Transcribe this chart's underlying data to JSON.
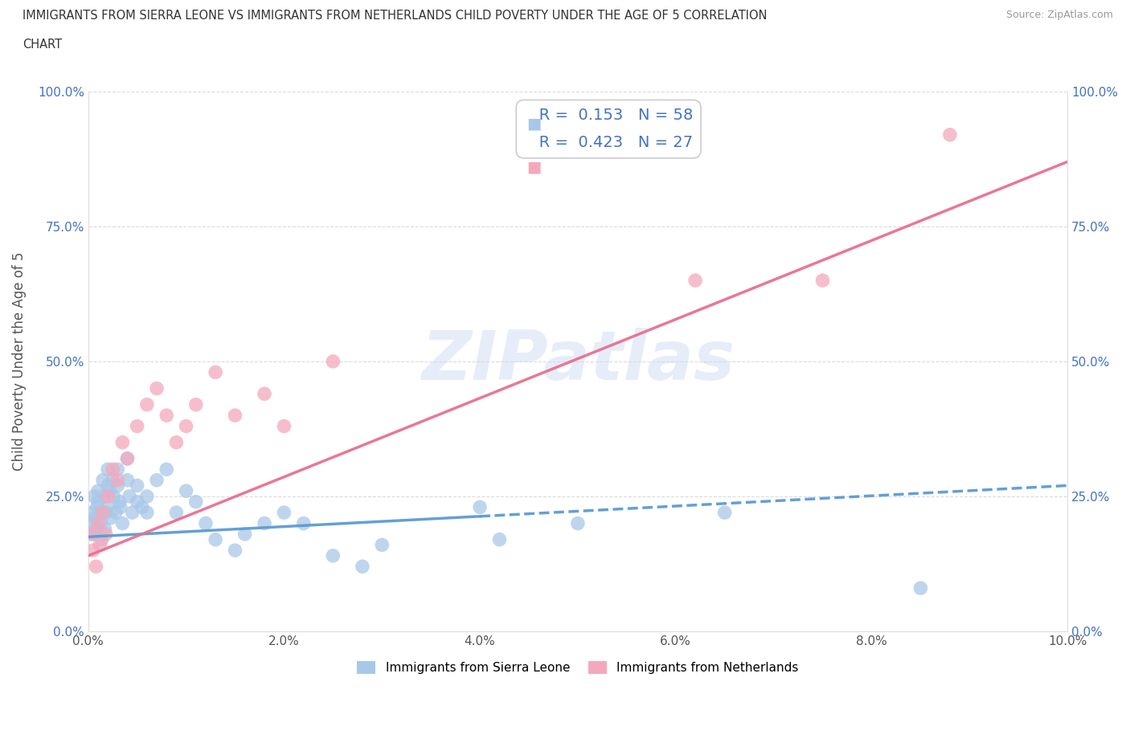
{
  "title_line1": "IMMIGRANTS FROM SIERRA LEONE VS IMMIGRANTS FROM NETHERLANDS CHILD POVERTY UNDER THE AGE OF 5 CORRELATION",
  "title_line2": "CHART",
  "source": "Source: ZipAtlas.com",
  "ylabel": "Child Poverty Under the Age of 5",
  "r_sierra": 0.153,
  "n_sierra": 58,
  "r_netherlands": 0.423,
  "n_netherlands": 27,
  "color_sierra": "#a8c8e8",
  "color_netherlands": "#f4a8bc",
  "trendline_sierra_color": "#5b9bd5",
  "trendline_netherlands_color": "#e87090",
  "background_color": "#ffffff",
  "watermark": "ZIPatlas",
  "xlim": [
    0.0,
    0.1
  ],
  "ylim": [
    0.0,
    1.0
  ],
  "ytick_vals": [
    0.0,
    0.25,
    0.5,
    0.75,
    1.0
  ],
  "ytick_labels": [
    "0.0%",
    "25.0%",
    "50.0%",
    "75.0%",
    "100.0%"
  ],
  "xtick_vals": [
    0.0,
    0.02,
    0.04,
    0.06,
    0.08,
    0.1
  ],
  "xtick_labels": [
    "0.0%",
    "2.0%",
    "4.0%",
    "6.0%",
    "8.0%",
    "10.0%"
  ],
  "sierra_trendline_y0": 0.175,
  "sierra_trendline_y1": 0.27,
  "netherlands_trendline_y0": 0.14,
  "netherlands_trendline_y1": 0.87,
  "sierra_solid_xend": 0.04,
  "legend_sierra": "Immigrants from Sierra Leone",
  "legend_netherlands": "Immigrants from Netherlands",
  "sierra_x": [
    0.0003,
    0.0004,
    0.0005,
    0.0006,
    0.0007,
    0.0008,
    0.0009,
    0.001,
    0.001,
    0.0012,
    0.0013,
    0.0014,
    0.0015,
    0.0016,
    0.0017,
    0.0018,
    0.002,
    0.002,
    0.002,
    0.0022,
    0.0023,
    0.0025,
    0.0026,
    0.0028,
    0.003,
    0.003,
    0.0032,
    0.0033,
    0.0035,
    0.004,
    0.004,
    0.0042,
    0.0045,
    0.005,
    0.005,
    0.0055,
    0.006,
    0.006,
    0.007,
    0.008,
    0.009,
    0.01,
    0.011,
    0.012,
    0.013,
    0.015,
    0.016,
    0.018,
    0.02,
    0.022,
    0.025,
    0.028,
    0.03,
    0.04,
    0.042,
    0.05,
    0.065,
    0.085
  ],
  "sierra_y": [
    0.2,
    0.22,
    0.18,
    0.25,
    0.21,
    0.19,
    0.23,
    0.26,
    0.24,
    0.22,
    0.2,
    0.17,
    0.28,
    0.25,
    0.19,
    0.22,
    0.3,
    0.27,
    0.23,
    0.26,
    0.21,
    0.28,
    0.25,
    0.22,
    0.3,
    0.27,
    0.24,
    0.23,
    0.2,
    0.32,
    0.28,
    0.25,
    0.22,
    0.24,
    0.27,
    0.23,
    0.25,
    0.22,
    0.28,
    0.3,
    0.22,
    0.26,
    0.24,
    0.2,
    0.17,
    0.15,
    0.18,
    0.2,
    0.22,
    0.2,
    0.14,
    0.12,
    0.16,
    0.23,
    0.17,
    0.2,
    0.22,
    0.08
  ],
  "netherlands_x": [
    0.0003,
    0.0005,
    0.0008,
    0.001,
    0.0012,
    0.0015,
    0.0018,
    0.002,
    0.0025,
    0.003,
    0.0035,
    0.004,
    0.005,
    0.006,
    0.007,
    0.008,
    0.009,
    0.01,
    0.011,
    0.013,
    0.015,
    0.018,
    0.02,
    0.025,
    0.062,
    0.075,
    0.088
  ],
  "netherlands_y": [
    0.18,
    0.15,
    0.12,
    0.2,
    0.16,
    0.22,
    0.18,
    0.25,
    0.3,
    0.28,
    0.35,
    0.32,
    0.38,
    0.42,
    0.45,
    0.4,
    0.35,
    0.38,
    0.42,
    0.48,
    0.4,
    0.44,
    0.38,
    0.5,
    0.65,
    0.65,
    0.92
  ]
}
